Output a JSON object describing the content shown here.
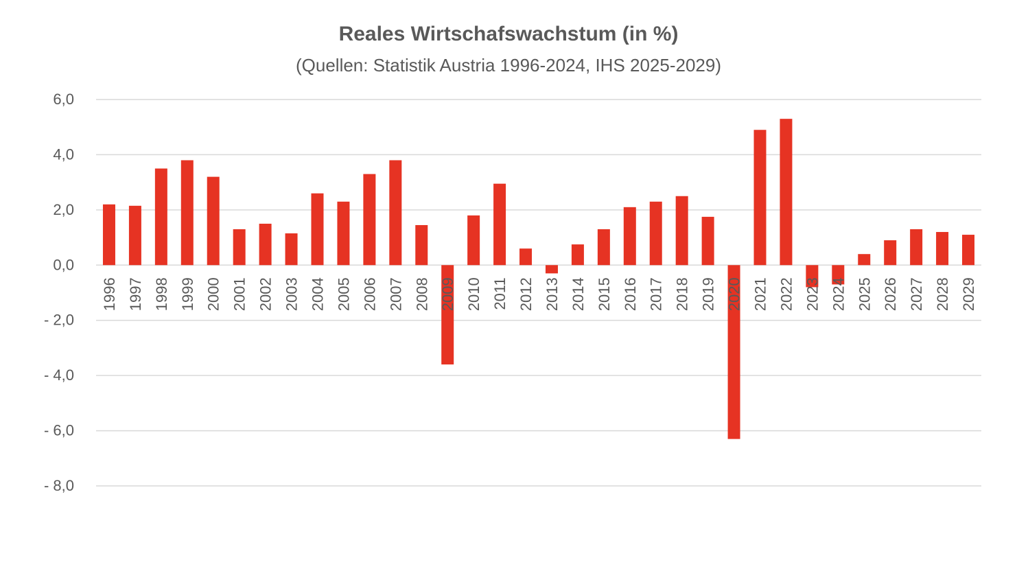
{
  "chart_data": {
    "type": "bar",
    "title": "Reales Wirtschafswachstum (in %)",
    "subtitle": "(Quellen: Statistik Austria 1996-2024, IHS 2025-2029)",
    "xlabel": "",
    "ylabel": "",
    "ylim": [
      -8,
      6
    ],
    "yticks": [
      6,
      4,
      2,
      0,
      -2,
      -4,
      -6,
      -8
    ],
    "ytick_labels": [
      "6,0",
      "4,0",
      "2,0",
      "0,0",
      "- 2,0",
      "- 4,0",
      "- 6,0",
      "- 8,0"
    ],
    "grid": true,
    "legend": "none",
    "bar_color": "#e63323",
    "categories": [
      "1996",
      "1997",
      "1998",
      "1999",
      "2000",
      "2001",
      "2002",
      "2003",
      "2004",
      "2005",
      "2006",
      "2007",
      "2008",
      "2009",
      "2010",
      "2011",
      "2012",
      "2013",
      "2014",
      "2015",
      "2016",
      "2017",
      "2018",
      "2019",
      "2020",
      "2021",
      "2022",
      "2023",
      "2024",
      "2025",
      "2026",
      "2027",
      "2028",
      "2029"
    ],
    "values": [
      2.2,
      2.15,
      3.5,
      3.8,
      3.2,
      1.3,
      1.5,
      1.15,
      2.6,
      2.3,
      3.3,
      3.8,
      1.45,
      -3.6,
      1.8,
      2.95,
      0.6,
      -0.3,
      0.75,
      1.3,
      2.1,
      2.3,
      2.5,
      1.75,
      -6.3,
      4.9,
      5.3,
      -0.8,
      -0.7,
      0.4,
      0.9,
      1.3,
      1.2,
      1.1
    ]
  }
}
